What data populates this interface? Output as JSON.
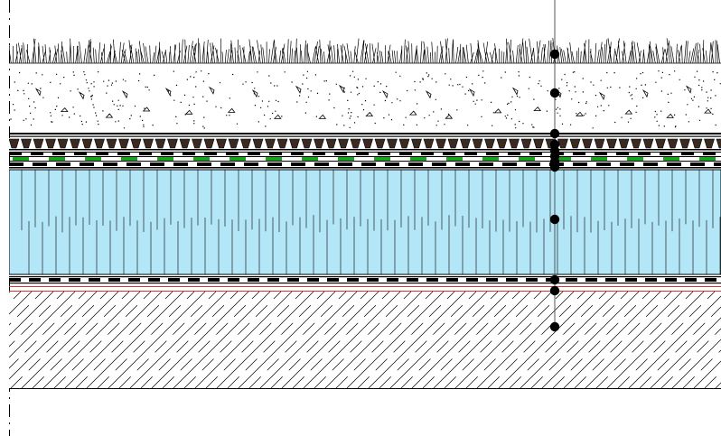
{
  "drawing": {
    "type": "green-roof-section",
    "layers": [
      {
        "id": "vegetation",
        "pattern": "grass"
      },
      {
        "id": "substrate",
        "pattern": "gravel-dots"
      },
      {
        "id": "drainage-filter",
        "pattern": "dimpled-sheet"
      },
      {
        "id": "root-barrier",
        "color": "#1aa31a"
      },
      {
        "id": "protection-membrane",
        "pattern": "dashed-black"
      },
      {
        "id": "insulation",
        "color": "#b3e6f7"
      },
      {
        "id": "waterproofing",
        "pattern": "dashed-black"
      },
      {
        "id": "vapour-control",
        "color": "#e03030"
      },
      {
        "id": "concrete-slab",
        "pattern": "diagonal-hatch"
      }
    ],
    "leader_points_count": 11,
    "colors": {
      "insulation": "#b3e6f7",
      "root_barrier": "#1aa31a",
      "vapour_line": "#e03030",
      "line": "#000000"
    }
  }
}
